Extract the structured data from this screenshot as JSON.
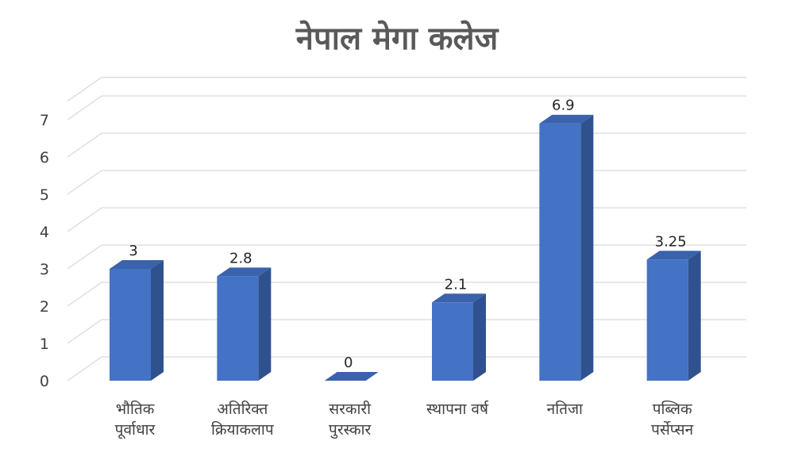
{
  "chart_data": {
    "type": "bar",
    "title": "नेपाल मेगा कलेज",
    "categories": [
      [
        "भौतिक",
        "पूर्वाधार"
      ],
      [
        "अतिरिक्त",
        "क्रियाकलाप"
      ],
      [
        "सरकारी",
        "पुरस्कार"
      ],
      [
        "स्थापना वर्ष"
      ],
      [
        "नतिजा"
      ],
      [
        "पब्लिक",
        "पर्सेप्सन"
      ]
    ],
    "values": [
      3,
      2.8,
      0,
      2.1,
      6.9,
      3.25
    ],
    "value_labels": [
      "3",
      "2.8",
      "0",
      "2.1",
      "6.9",
      "3.25"
    ],
    "y_ticks": [
      "0",
      "1",
      "2",
      "3",
      "4",
      "5",
      "6",
      "7"
    ],
    "ylim": [
      0,
      7.5
    ],
    "grid": true,
    "style": "3d-clustered-column",
    "colors": {
      "front": "#4472c4",
      "side": "#2f528f",
      "top": "#3a62ad",
      "grid": "#d9d9d9",
      "text": "#404040",
      "title": "#595959"
    }
  }
}
